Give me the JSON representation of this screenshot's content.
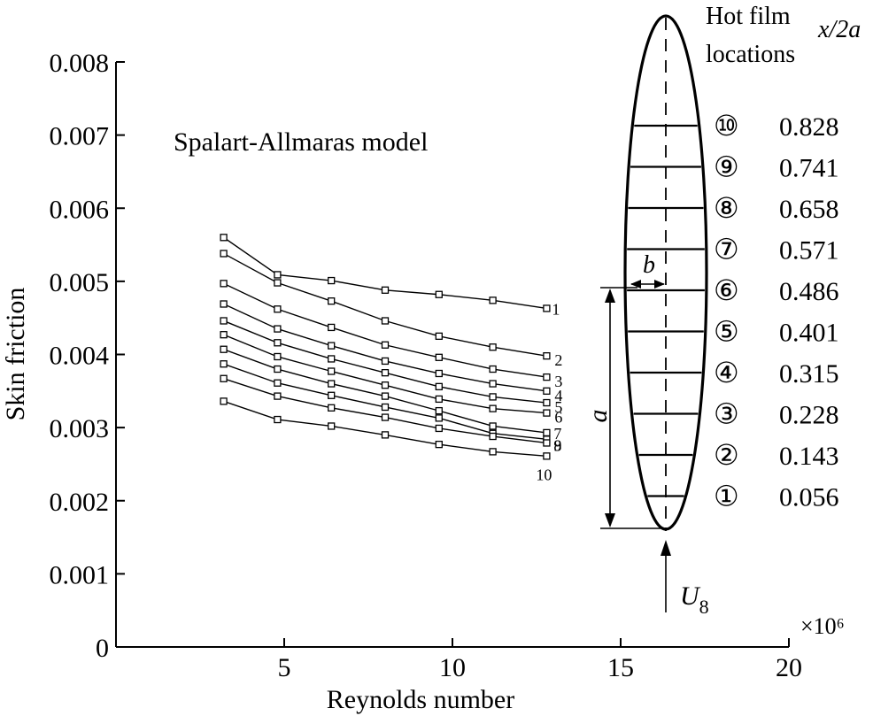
{
  "chart_data": {
    "type": "line",
    "title": "Spalart-Allmaras model",
    "xlabel": "Reynolds number",
    "ylabel": "Skin friction",
    "x_multiplier_label": "×10⁶",
    "xlim": [
      0,
      20
    ],
    "ylim": [
      0,
      0.008
    ],
    "x_ticks": [
      {
        "value": 5,
        "label": "5"
      },
      {
        "value": 10,
        "label": "10"
      },
      {
        "value": 15,
        "label": "15"
      },
      {
        "value": 20,
        "label": "20"
      }
    ],
    "y_ticks": [
      {
        "value": 0,
        "label": "0"
      },
      {
        "value": 0.001,
        "label": "0.001"
      },
      {
        "value": 0.002,
        "label": "0.002"
      },
      {
        "value": 0.003,
        "label": "0.003"
      },
      {
        "value": 0.004,
        "label": "0.004"
      },
      {
        "value": 0.005,
        "label": "0.005"
      },
      {
        "value": 0.006,
        "label": "0.006"
      },
      {
        "value": 0.007,
        "label": "0.007"
      },
      {
        "value": 0.008,
        "label": "0.008"
      }
    ],
    "x": [
      3.2,
      4.8,
      6.4,
      8.0,
      9.6,
      11.2,
      12.8
    ],
    "series": [
      {
        "name": "1",
        "values": [
          0.0056,
          0.00509,
          0.00501,
          0.00488,
          0.00482,
          0.00474,
          0.00463
        ]
      },
      {
        "name": "2",
        "values": [
          0.00538,
          0.00498,
          0.00473,
          0.00446,
          0.00425,
          0.0041,
          0.00398
        ]
      },
      {
        "name": "3",
        "values": [
          0.00497,
          0.00462,
          0.00437,
          0.00413,
          0.00396,
          0.0038,
          0.00369
        ]
      },
      {
        "name": "4",
        "values": [
          0.00469,
          0.00435,
          0.00412,
          0.00391,
          0.00374,
          0.0036,
          0.0035
        ]
      },
      {
        "name": "5",
        "values": [
          0.00446,
          0.00416,
          0.00394,
          0.00375,
          0.00356,
          0.00342,
          0.00334
        ]
      },
      {
        "name": "6",
        "values": [
          0.00427,
          0.00397,
          0.00377,
          0.00358,
          0.00339,
          0.00326,
          0.0032
        ]
      },
      {
        "name": "7",
        "values": [
          0.00407,
          0.0038,
          0.0036,
          0.00343,
          0.00323,
          0.00302,
          0.00293
        ]
      },
      {
        "name": "8",
        "values": [
          0.00387,
          0.00361,
          0.00344,
          0.00328,
          0.00313,
          0.00292,
          0.00284
        ]
      },
      {
        "name": "9",
        "values": [
          0.00367,
          0.00343,
          0.00327,
          0.00314,
          0.00299,
          0.00288,
          0.00279
        ]
      },
      {
        "name": "10",
        "values": [
          0.00336,
          0.00311,
          0.00302,
          0.0029,
          0.00277,
          0.00267,
          0.00261
        ]
      }
    ]
  },
  "inset": {
    "header_line1": "Hot film",
    "header_line2": "locations",
    "header_var": "x/2a",
    "dim_b": "b",
    "dim_a": "a",
    "flow_label": "U",
    "flow_subscript": "8",
    "locations": [
      {
        "marker": "⑩",
        "value": "0.828"
      },
      {
        "marker": "⑨",
        "value": "0.741"
      },
      {
        "marker": "⑧",
        "value": "0.658"
      },
      {
        "marker": "⑦",
        "value": "0.571"
      },
      {
        "marker": "⑥",
        "value": "0.486"
      },
      {
        "marker": "⑤",
        "value": "0.401"
      },
      {
        "marker": "④",
        "value": "0.315"
      },
      {
        "marker": "③",
        "value": "0.228"
      },
      {
        "marker": "②",
        "value": "0.143"
      },
      {
        "marker": "①",
        "value": "0.056"
      }
    ]
  }
}
